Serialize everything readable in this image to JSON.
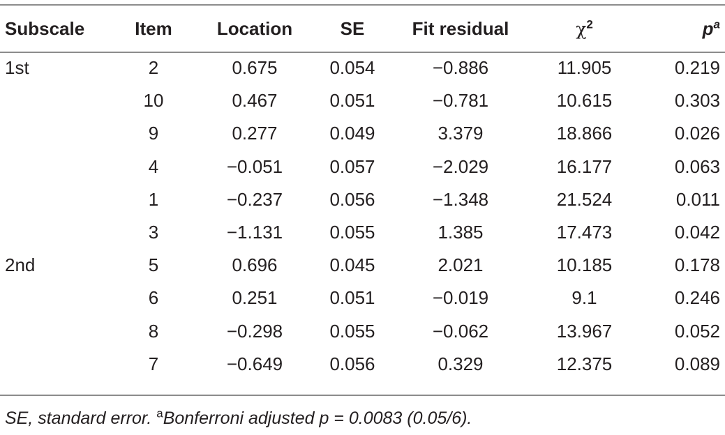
{
  "table": {
    "headers": {
      "subscale": "Subscale",
      "item": "Item",
      "location": "Location",
      "se": "SE",
      "fit_residual": "Fit residual",
      "chi_symbol": "χ",
      "chi_sup": "2",
      "p_symbol": "p",
      "p_sup": "a"
    },
    "rows": [
      {
        "subscale": "1st",
        "item": "2",
        "location": "0.675",
        "se": "0.054",
        "fit": "−0.886",
        "chi2": "11.905",
        "p": "0.219"
      },
      {
        "subscale": "",
        "item": "10",
        "location": "0.467",
        "se": "0.051",
        "fit": "−0.781",
        "chi2": "10.615",
        "p": "0.303"
      },
      {
        "subscale": "",
        "item": "9",
        "location": "0.277",
        "se": "0.049",
        "fit": "3.379",
        "chi2": "18.866",
        "p": "0.026"
      },
      {
        "subscale": "",
        "item": "4",
        "location": "−0.051",
        "se": "0.057",
        "fit": "−2.029",
        "chi2": "16.177",
        "p": "0.063"
      },
      {
        "subscale": "",
        "item": "1",
        "location": "−0.237",
        "se": "0.056",
        "fit": "−1.348",
        "chi2": "21.524",
        "p": "0.011"
      },
      {
        "subscale": "",
        "item": "3",
        "location": "−1.131",
        "se": "0.055",
        "fit": "1.385",
        "chi2": "17.473",
        "p": "0.042"
      },
      {
        "subscale": "2nd",
        "item": "5",
        "location": "0.696",
        "se": "0.045",
        "fit": "2.021",
        "chi2": "10.185",
        "p": "0.178"
      },
      {
        "subscale": "",
        "item": "6",
        "location": "0.251",
        "se": "0.051",
        "fit": "−0.019",
        "chi2": "9.1",
        "p": "0.246"
      },
      {
        "subscale": "",
        "item": "8",
        "location": "−0.298",
        "se": "0.055",
        "fit": "−0.062",
        "chi2": "13.967",
        "p": "0.052"
      },
      {
        "subscale": "",
        "item": "7",
        "location": "−0.649",
        "se": "0.056",
        "fit": "0.329",
        "chi2": "12.375",
        "p": "0.089"
      }
    ]
  },
  "footnote": {
    "lead": "SE, standard error. ",
    "marker": "a",
    "text": "Bonferroni adjusted p = 0.0083 (0.05/6)."
  }
}
